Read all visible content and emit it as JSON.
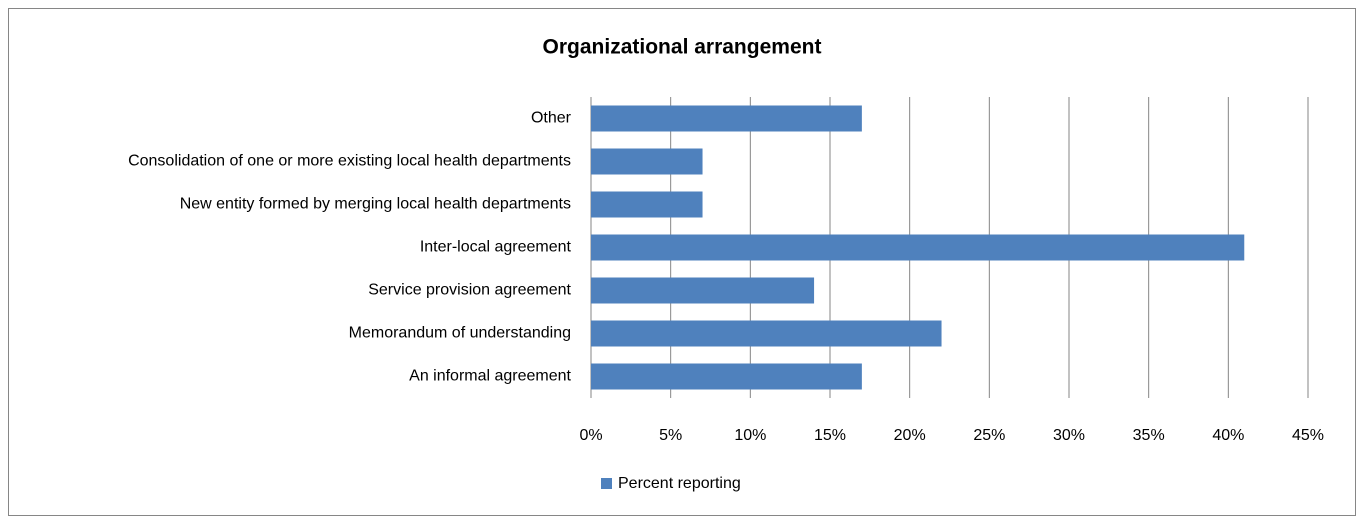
{
  "chart_data": {
    "type": "bar",
    "orientation": "horizontal",
    "title": "Organizational arrangement",
    "categories": [
      "Other",
      "Consolidation of one or more existing local health departments",
      "New entity formed by merging local health departments",
      "Inter-local agreement",
      "Service provision agreement",
      "Memorandum of understanding",
      "An informal agreement"
    ],
    "series": [
      {
        "name": "Percent reporting",
        "color": "#4f81bd",
        "values": [
          17,
          7,
          7,
          41,
          14,
          22,
          17
        ]
      }
    ],
    "xlim": [
      0,
      45
    ],
    "xticks": [
      {
        "value": 0,
        "label": "0%"
      },
      {
        "value": 5,
        "label": "5%"
      },
      {
        "value": 10,
        "label": "10%"
      },
      {
        "value": 15,
        "label": "15%"
      },
      {
        "value": 20,
        "label": "20%"
      },
      {
        "value": 25,
        "label": "25%"
      },
      {
        "value": 30,
        "label": "30%"
      },
      {
        "value": 35,
        "label": "35%"
      },
      {
        "value": 40,
        "label": "40%"
      },
      {
        "value": 45,
        "label": "45%"
      }
    ],
    "grid": true,
    "legend": "bottom"
  }
}
